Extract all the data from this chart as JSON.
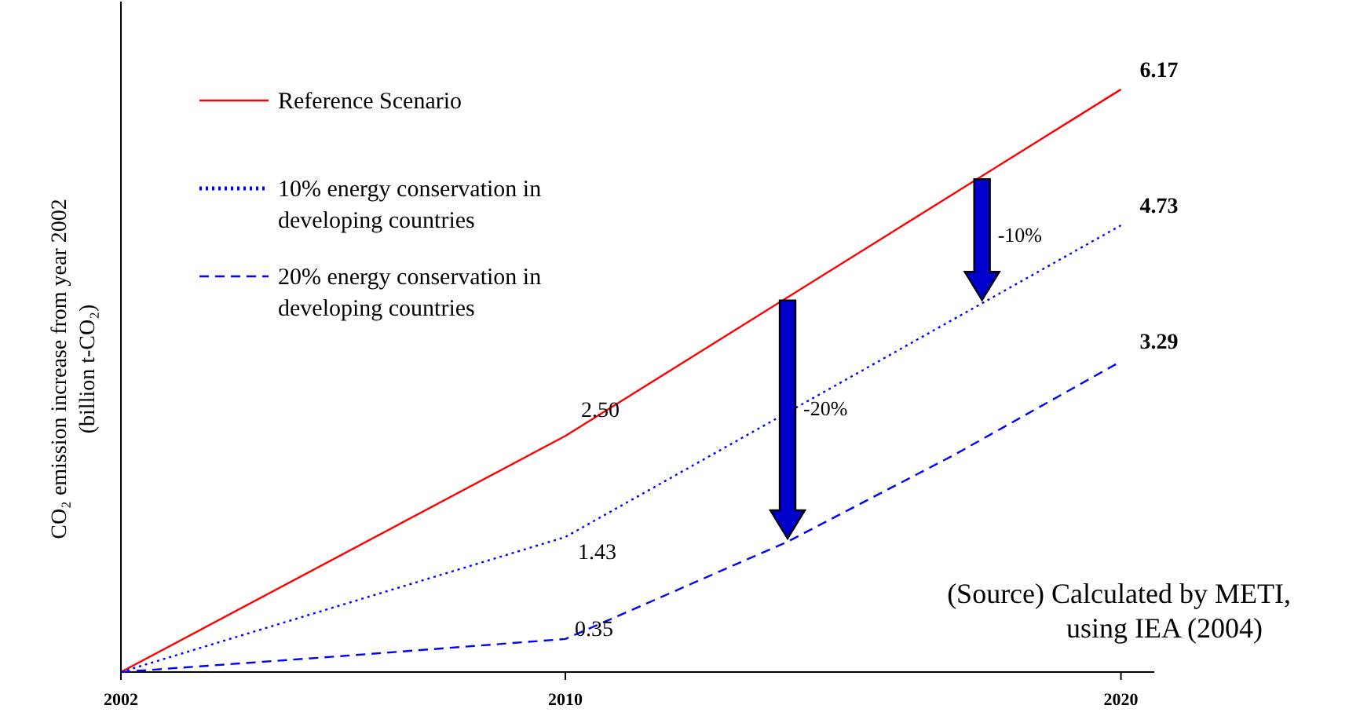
{
  "chart_data": {
    "type": "line",
    "ylabel": "CO₂ emission increase from year 2002 (billion t-CO₂)",
    "xlim": [
      2002,
      2020.6
    ],
    "ylim": [
      0,
      7.1
    ],
    "xticks": [
      2002,
      2010,
      2020
    ],
    "tick_labels": "x",
    "grid": false,
    "legend": "top left",
    "series": [
      {
        "name": "Reference Scenario",
        "color": "#ff0000",
        "line_style": "solid",
        "x": [
          2002,
          2010,
          2020
        ],
        "values": [
          0,
          2.5,
          6.17
        ],
        "value_labels": [
          null,
          "2.50",
          "6.17"
        ]
      },
      {
        "name": "10% energy conservation in developing countries",
        "color": "#0000ff",
        "line_style": "dotted",
        "x": [
          2002,
          2010,
          2020
        ],
        "values": [
          0,
          1.43,
          4.73
        ],
        "value_labels": [
          null,
          "1.43",
          "4.73"
        ]
      },
      {
        "name": "20% energy conservation in developing countries",
        "color": "#0000ff",
        "line_style": "dashed",
        "x": [
          2002,
          2006,
          2010,
          2014,
          2017,
          2020
        ],
        "values": [
          0,
          0.17,
          0.35,
          1.38,
          2.3,
          3.29
        ],
        "value_labels": [
          null,
          null,
          "0.35",
          null,
          null,
          "3.29"
        ]
      }
    ],
    "annotations": [
      "-20%",
      "-10%",
      "(Source) Calculated by METI, using IEA (2004)"
    ]
  }
}
